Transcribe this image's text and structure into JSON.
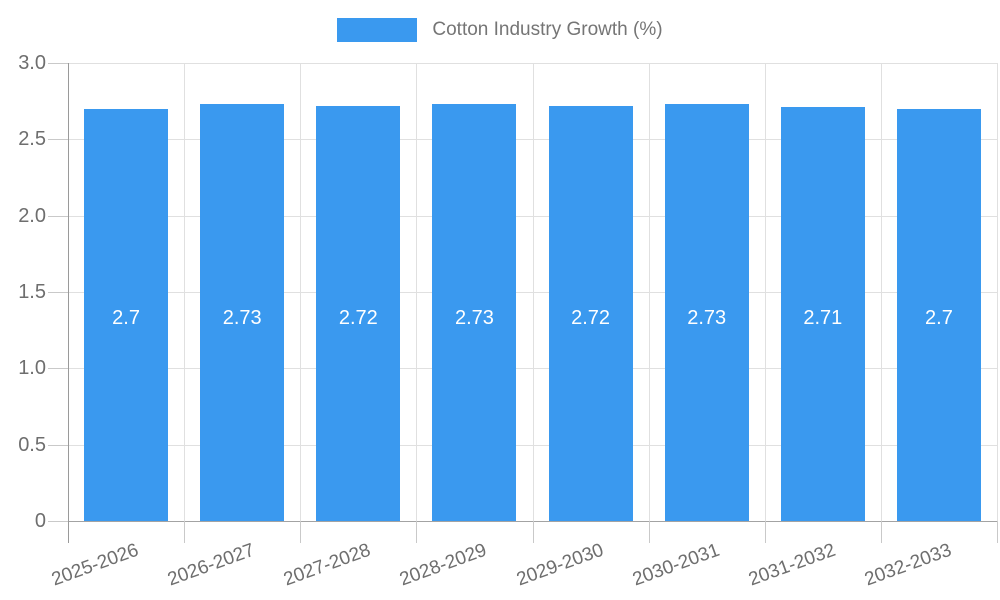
{
  "chart_data": {
    "type": "bar",
    "title": "",
    "legend": {
      "label": "Cotton Industry Growth (%)",
      "position": "top"
    },
    "categories": [
      "2025-2026",
      "2026-2027",
      "2027-2028",
      "2028-2029",
      "2029-2030",
      "2030-2031",
      "2031-2032",
      "2032-2033"
    ],
    "values": [
      2.7,
      2.73,
      2.72,
      2.73,
      2.72,
      2.73,
      2.71,
      2.7
    ],
    "bar_labels": [
      "2.7",
      "2.73",
      "2.72",
      "2.73",
      "2.72",
      "2.73",
      "2.71",
      "2.7"
    ],
    "xlabel": "",
    "ylabel": "",
    "ylim": [
      0,
      3
    ],
    "ytick_step": 0.5,
    "ytick_labels": [
      "3.0",
      "2.5",
      "2.0",
      "1.5",
      "1.0",
      "0.5",
      "0"
    ],
    "grid": "on",
    "colors": {
      "bar": "#3a99ef",
      "bar_label": "#ffffff",
      "grid": "#e0e0e0",
      "axis": "#9a9a9a",
      "tick": "#c9c9c9",
      "text": "#6e6e6e",
      "legend_text": "#757575",
      "background": "#ffffff"
    }
  }
}
